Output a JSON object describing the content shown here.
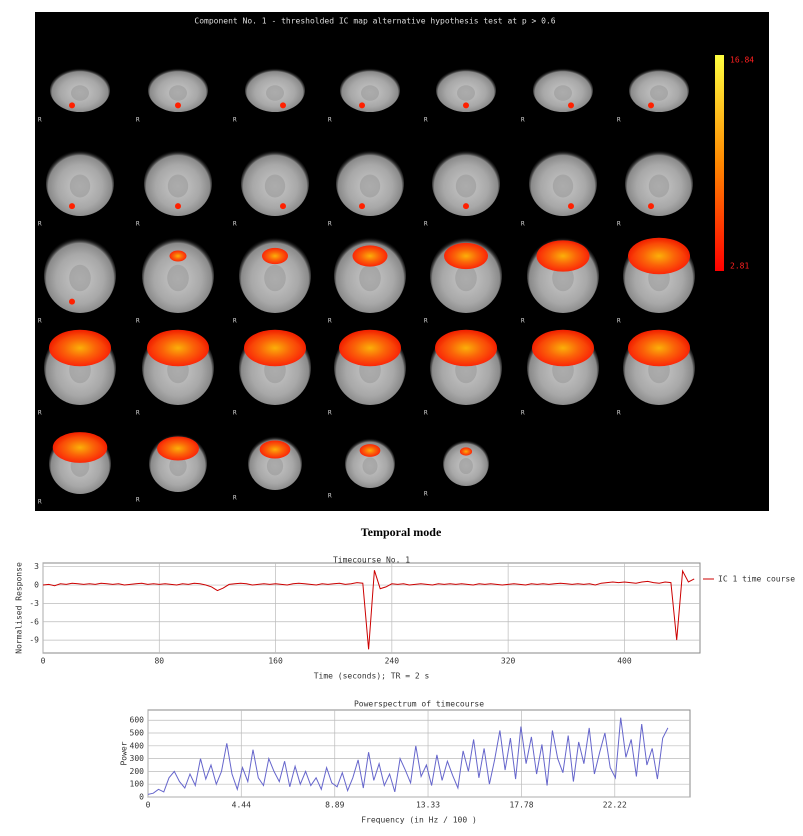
{
  "brain_map": {
    "title": "Component No. 1 - thresholded IC map   alternative hypothesis test at p > 0.6",
    "colorbar_max": "16.84",
    "colorbar_min": "2.81",
    "orientation_label": "R"
  },
  "heading": "Temporal mode",
  "chart_data": [
    {
      "type": "line",
      "title": "Timecourse No. 1",
      "x_label": "Time (seconds); TR = 2 s",
      "y_label": "Normalised Response",
      "xlim": [
        0,
        452
      ],
      "ylim": [
        -11.1,
        3.6
      ],
      "xticks": [
        0,
        80,
        160,
        240,
        320,
        400
      ],
      "yticks": [
        3,
        0,
        -3,
        -6,
        -9
      ],
      "grid": true,
      "legend": "right",
      "x": [
        0,
        4,
        8,
        12,
        16,
        20,
        24,
        28,
        32,
        36,
        40,
        44,
        48,
        52,
        56,
        60,
        64,
        68,
        72,
        76,
        80,
        84,
        88,
        92,
        96,
        100,
        104,
        108,
        112,
        116,
        120,
        124,
        128,
        132,
        136,
        140,
        144,
        148,
        152,
        156,
        160,
        164,
        168,
        172,
        176,
        180,
        184,
        188,
        192,
        196,
        200,
        204,
        208,
        212,
        216,
        220,
        224,
        228,
        232,
        236,
        240,
        244,
        248,
        252,
        256,
        260,
        264,
        268,
        272,
        276,
        280,
        284,
        288,
        292,
        296,
        300,
        304,
        308,
        312,
        316,
        320,
        324,
        328,
        332,
        336,
        340,
        344,
        348,
        352,
        356,
        360,
        364,
        368,
        372,
        376,
        380,
        384,
        388,
        392,
        396,
        400,
        404,
        408,
        412,
        416,
        420,
        424,
        428,
        432,
        436,
        440,
        444,
        448
      ],
      "series": [
        {
          "name": "IC 1 time course",
          "color": "#cc0000",
          "values": [
            0,
            0.1,
            -0.1,
            0.2,
            0.1,
            0.3,
            0.2,
            0.1,
            0.2,
            0.1,
            0.3,
            0.2,
            0.1,
            0.2,
            0,
            0.1,
            0.2,
            0.3,
            0.1,
            0.2,
            0.1,
            0.2,
            0.1,
            0,
            0.2,
            0.1,
            0.3,
            0.2,
            0,
            -0.3,
            -0.9,
            -0.5,
            0.1,
            0.2,
            0.3,
            0.2,
            0,
            0.1,
            0.2,
            0.1,
            0.2,
            0.1,
            0,
            0.2,
            0.3,
            0.2,
            0.1,
            0,
            0.2,
            0.1,
            0.2,
            0.3,
            0.1,
            0.2,
            0.4,
            0.3,
            -10.5,
            2.4,
            -0.6,
            -0.3,
            0.2,
            0.1,
            0.2,
            0,
            0.1,
            0.2,
            0.1,
            0,
            0.2,
            0.1,
            0.2,
            0.1,
            0.2,
            0.1,
            0,
            0.2,
            0.1,
            0.2,
            0.1,
            0,
            0.1,
            0.2,
            0.1,
            0,
            0.2,
            0.1,
            0.2,
            0.1,
            0.2,
            0.3,
            0.2,
            0.1,
            0.2,
            0.1,
            0.2,
            0,
            0.3,
            0.4,
            0.5,
            0.4,
            0.5,
            0.4,
            0.3,
            0.5,
            0.6,
            0.4,
            0.3,
            0.5,
            0.4,
            -9,
            2.3,
            0.5,
            1
          ]
        }
      ]
    },
    {
      "type": "line",
      "title": "Powerspectrum of timecourse",
      "x_label": "Frequency (in Hz / 100 )",
      "y_label": "Power",
      "xlim": [
        0,
        25.8
      ],
      "ylim": [
        0,
        680
      ],
      "xticks": [
        0,
        4.44,
        8.89,
        13.33,
        17.78,
        22.22
      ],
      "yticks": [
        0,
        100,
        200,
        300,
        400,
        500,
        600
      ],
      "grid": true,
      "x": [
        0,
        0.25,
        0.5,
        0.75,
        1,
        1.25,
        1.5,
        1.75,
        2,
        2.25,
        2.5,
        2.75,
        3,
        3.25,
        3.5,
        3.75,
        4,
        4.25,
        4.5,
        4.75,
        5,
        5.25,
        5.5,
        5.75,
        6,
        6.25,
        6.5,
        6.75,
        7,
        7.25,
        7.5,
        7.75,
        8,
        8.25,
        8.5,
        8.75,
        9,
        9.25,
        9.5,
        9.75,
        10,
        10.25,
        10.5,
        10.75,
        11,
        11.25,
        11.5,
        11.75,
        12,
        12.25,
        12.5,
        12.75,
        13,
        13.25,
        13.5,
        13.75,
        14,
        14.25,
        14.5,
        14.75,
        15,
        15.25,
        15.5,
        15.75,
        16,
        16.25,
        16.5,
        16.75,
        17,
        17.25,
        17.5,
        17.75,
        18,
        18.25,
        18.5,
        18.75,
        19,
        19.25,
        19.5,
        19.75,
        20,
        20.25,
        20.5,
        20.75,
        21,
        21.25,
        21.5,
        21.75,
        22,
        22.25,
        22.5,
        22.75,
        23,
        23.25,
        23.5,
        23.75,
        24,
        24.25,
        24.5,
        24.75
      ],
      "series": [
        {
          "color": "#6666cc",
          "values": [
            20,
            30,
            60,
            40,
            150,
            200,
            120,
            70,
            180,
            90,
            300,
            140,
            250,
            100,
            200,
            420,
            180,
            60,
            230,
            120,
            370,
            150,
            90,
            300,
            200,
            120,
            280,
            80,
            240,
            100,
            200,
            90,
            150,
            60,
            230,
            110,
            80,
            190,
            50,
            150,
            290,
            70,
            350,
            130,
            260,
            90,
            180,
            40,
            300,
            210,
            110,
            400,
            160,
            250,
            90,
            330,
            130,
            280,
            170,
            70,
            360,
            200,
            450,
            150,
            380,
            100,
            290,
            520,
            210,
            460,
            140,
            550,
            260,
            470,
            180,
            410,
            90,
            520,
            300,
            190,
            480,
            120,
            430,
            260,
            540,
            180,
            350,
            500,
            230,
            150,
            620,
            310,
            450,
            160,
            570,
            250,
            380,
            140,
            460,
            540
          ]
        }
      ]
    }
  ]
}
